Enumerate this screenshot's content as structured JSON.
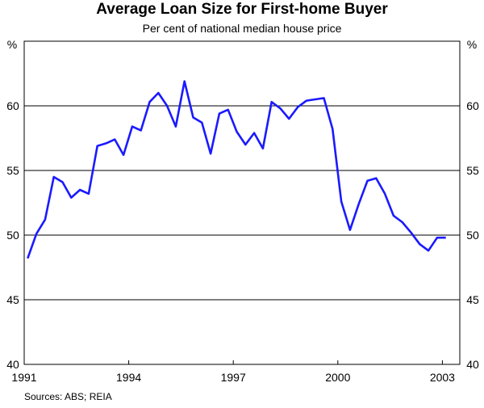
{
  "chart_data": {
    "type": "line",
    "title": "Average Loan Size for First-home Buyer",
    "subtitle": "Per cent of national median house price",
    "ylabel_left": "%",
    "ylabel_right": "%",
    "ylim": [
      40,
      65
    ],
    "yticks": [
      40,
      45,
      50,
      55,
      60
    ],
    "xlim": [
      1991.0,
      2003.5
    ],
    "xticks": [
      1991,
      1994,
      1997,
      2000,
      2003
    ],
    "grid": true,
    "line_color": "#1a1aff",
    "series": [
      {
        "x": [
          1991.1,
          1991.35,
          1991.6,
          1991.85,
          1992.1,
          1992.35,
          1992.6,
          1992.85,
          1993.1,
          1993.35,
          1993.6,
          1993.85,
          1994.1,
          1994.35,
          1994.6,
          1994.85,
          1995.1,
          1995.35,
          1995.6,
          1995.85,
          1996.1,
          1996.35,
          1996.6,
          1996.85,
          1997.1,
          1997.35,
          1997.6,
          1997.85,
          1998.1,
          1998.35,
          1998.6,
          1998.85,
          1999.1,
          1999.35,
          1999.6,
          1999.85,
          2000.1,
          2000.35,
          2000.6,
          2000.85,
          2001.1,
          2001.35,
          2001.6,
          2001.85,
          2002.1,
          2002.35,
          2002.6,
          2002.85,
          2003.1
        ],
        "values": [
          48.2,
          50.1,
          51.2,
          54.5,
          54.1,
          52.9,
          53.5,
          53.2,
          56.9,
          57.1,
          57.4,
          56.2,
          58.4,
          58.1,
          60.3,
          61.0,
          60.0,
          58.4,
          61.9,
          59.1,
          58.7,
          56.3,
          59.4,
          59.7,
          58.0,
          57.0,
          57.9,
          56.7,
          60.3,
          59.8,
          59.0,
          59.9,
          60.4,
          60.5,
          60.6,
          58.2,
          52.6,
          50.4,
          52.4,
          54.2,
          54.4,
          53.2,
          51.5,
          51.0,
          50.2,
          49.3,
          48.8,
          49.8,
          49.8
        ]
      }
    ]
  },
  "source": "Sources: ABS; REIA"
}
